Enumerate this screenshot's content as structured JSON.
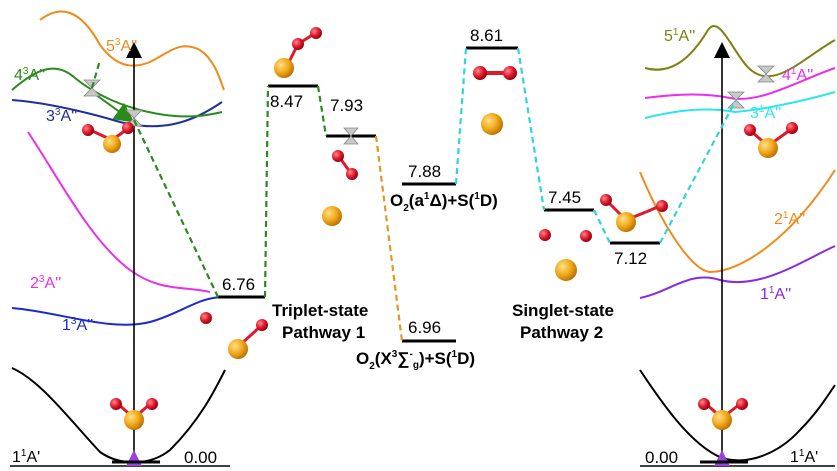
{
  "colors": {
    "black": "#000000",
    "navy": "#1f2f9f",
    "blue": "#1a2ad0",
    "green": "#2a8a1e",
    "orange": "#f08a1c",
    "magenta": "#e830e8",
    "cyan": "#2ee6ea",
    "olive": "#7f7f10",
    "purple": "#8a2ae0",
    "sulfur": "#f2a818",
    "oxygen": "#e0182c",
    "greenDash": "#2a8a1e",
    "orangeDash": "#e0962a",
    "cyanDash": "#33d3dc"
  },
  "levels": [
    {
      "id": "l676",
      "value": "6.76"
    },
    {
      "id": "l847",
      "value": "8.47"
    },
    {
      "id": "l793",
      "value": "7.93"
    },
    {
      "id": "l696",
      "value": "6.96"
    },
    {
      "id": "l788",
      "value": "7.88"
    },
    {
      "id": "l861",
      "value": "8.61"
    },
    {
      "id": "l745",
      "value": "7.45"
    },
    {
      "id": "l712",
      "value": "7.12"
    },
    {
      "id": "l000L",
      "value": "0.00"
    },
    {
      "id": "l000R",
      "value": "0.00"
    }
  ],
  "states_left": {
    "s1": {
      "num": "1",
      "sup": "1",
      "sym": "A'"
    },
    "s2": {
      "num": "1",
      "sup": "3",
      "sym": "A''"
    },
    "s3": {
      "num": "2",
      "sup": "3",
      "sym": "A''"
    },
    "s4": {
      "num": "3",
      "sup": "3",
      "sym": "A''"
    },
    "s5": {
      "num": "4",
      "sup": "3",
      "sym": "A''"
    },
    "s6": {
      "num": "5",
      "sup": "3",
      "sym": "A''"
    }
  },
  "states_right": {
    "s1": {
      "num": "1",
      "sup": "1",
      "sym": "A'"
    },
    "s2": {
      "num": "1",
      "sup": "1",
      "sym": "A''"
    },
    "s3": {
      "num": "2",
      "sup": "1",
      "sym": "A''"
    },
    "s4": {
      "num": "3",
      "sup": "1",
      "sym": "A''"
    },
    "s5": {
      "num": "4",
      "sup": "1",
      "sym": "A''"
    },
    "s6": {
      "num": "5",
      "sup": "1",
      "sym": "A''"
    }
  },
  "pathways": {
    "p1_line1": "Triplet-state",
    "p1_line2": "Pathway 1",
    "p2_line1": "Singlet-state",
    "p2_line2": "Pathway 2"
  },
  "products": {
    "a": {
      "pre": "O",
      "sub": "2",
      "mid": "(a",
      "sup": "1",
      "term": "Δ)+S(",
      "sup2": "1",
      "end": "D)"
    },
    "x": {
      "pre": "O",
      "sub": "2",
      "mid": "(X",
      "sup": "3",
      "sum": "∑",
      "sub2": "g",
      "supm": "-",
      "term": ")+S(",
      "sup2": "1",
      "end": "D)"
    }
  }
}
